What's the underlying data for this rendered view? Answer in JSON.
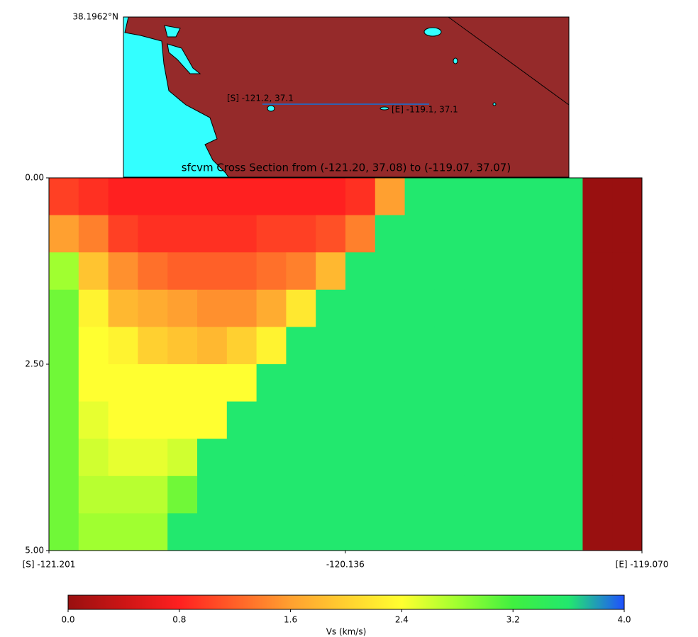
{
  "chart_data": [
    {
      "type": "map",
      "corner_label": "38.1962°N",
      "start_label": "[S] -121.2, 37.1",
      "end_label": "[E] -119.1, 37.1",
      "land_color": "#952a2a",
      "water_color": "#33ffff",
      "line_color": "#3060b0"
    },
    {
      "type": "heatmap",
      "title": "sfcvm Cross Section from (-121.20, 37.08) to (-119.07, 37.07)",
      "xlim": [
        -121.201,
        -119.07
      ],
      "xticks": [
        {
          "value": -121.201,
          "label": "[S] -121.201"
        },
        {
          "value": -120.136,
          "label": "-120.136"
        },
        {
          "value": -119.07,
          "label": "[E] -119.070"
        }
      ],
      "ylim": [
        0,
        5
      ],
      "yticks": [
        {
          "value": 0,
          "label": "0.00"
        },
        {
          "value": 2.5,
          "label": "2.50"
        },
        {
          "value": 5,
          "label": "5.00"
        }
      ],
      "y_inverted": true,
      "z": [
        [
          1.0,
          0.9,
          0.8,
          0.8,
          0.8,
          0.8,
          0.8,
          0.8,
          0.8,
          0.8,
          0.9,
          1.6,
          3.6,
          3.6,
          3.6,
          3.6,
          3.6,
          3.6,
          0,
          0
        ],
        [
          1.6,
          1.4,
          1.0,
          0.9,
          0.9,
          0.9,
          0.9,
          1.0,
          1.0,
          1.1,
          1.4,
          3.6,
          3.6,
          3.6,
          3.6,
          3.6,
          3.6,
          3.6,
          0,
          0
        ],
        [
          2.8,
          1.9,
          1.5,
          1.3,
          1.2,
          1.2,
          1.2,
          1.3,
          1.4,
          1.8,
          3.6,
          3.6,
          3.6,
          3.6,
          3.6,
          3.6,
          3.6,
          3.6,
          0,
          0
        ],
        [
          3.0,
          2.3,
          1.8,
          1.7,
          1.6,
          1.5,
          1.5,
          1.7,
          2.2,
          3.6,
          3.6,
          3.6,
          3.6,
          3.6,
          3.6,
          3.6,
          3.6,
          3.6,
          0,
          0
        ],
        [
          3.0,
          2.4,
          2.3,
          2.0,
          1.9,
          1.8,
          2.0,
          2.3,
          3.6,
          3.6,
          3.6,
          3.6,
          3.6,
          3.6,
          3.6,
          3.6,
          3.6,
          3.6,
          0,
          0
        ],
        [
          3.0,
          2.4,
          2.4,
          2.4,
          2.4,
          2.4,
          2.4,
          3.6,
          3.6,
          3.6,
          3.6,
          3.6,
          3.6,
          3.6,
          3.6,
          3.6,
          3.6,
          3.6,
          0,
          0
        ],
        [
          3.0,
          2.5,
          2.4,
          2.4,
          2.4,
          2.4,
          3.6,
          3.6,
          3.6,
          3.6,
          3.6,
          3.6,
          3.6,
          3.6,
          3.6,
          3.6,
          3.6,
          3.6,
          0,
          0
        ],
        [
          3.0,
          2.6,
          2.5,
          2.5,
          2.6,
          3.6,
          3.6,
          3.6,
          3.6,
          3.6,
          3.6,
          3.6,
          3.6,
          3.6,
          3.6,
          3.6,
          3.6,
          3.6,
          0,
          0
        ],
        [
          3.0,
          2.7,
          2.7,
          2.7,
          3.0,
          3.6,
          3.6,
          3.6,
          3.6,
          3.6,
          3.6,
          3.6,
          3.6,
          3.6,
          3.6,
          3.6,
          3.6,
          3.6,
          0,
          0
        ],
        [
          3.0,
          2.8,
          2.8,
          2.8,
          3.6,
          3.6,
          3.6,
          3.6,
          3.6,
          3.6,
          3.6,
          3.6,
          3.6,
          3.6,
          3.6,
          3.6,
          3.6,
          3.6,
          0,
          0
        ]
      ],
      "clim": [
        0,
        4
      ],
      "cticks": [
        {
          "value": 0,
          "label": "0.0"
        },
        {
          "value": 0.8,
          "label": "0.8"
        },
        {
          "value": 1.6,
          "label": "1.6"
        },
        {
          "value": 2.4,
          "label": "2.4"
        },
        {
          "value": 3.2,
          "label": "3.2"
        },
        {
          "value": 4,
          "label": "4.0"
        }
      ],
      "clabel": "Vs (km/s)",
      "colorscale": [
        "#991010",
        "#cc1515",
        "#ff2020",
        "#ff6028",
        "#ffa030",
        "#ffd030",
        "#ffff30",
        "#a0ff30",
        "#40f040",
        "#22e86e",
        "#2050ff"
      ]
    }
  ]
}
